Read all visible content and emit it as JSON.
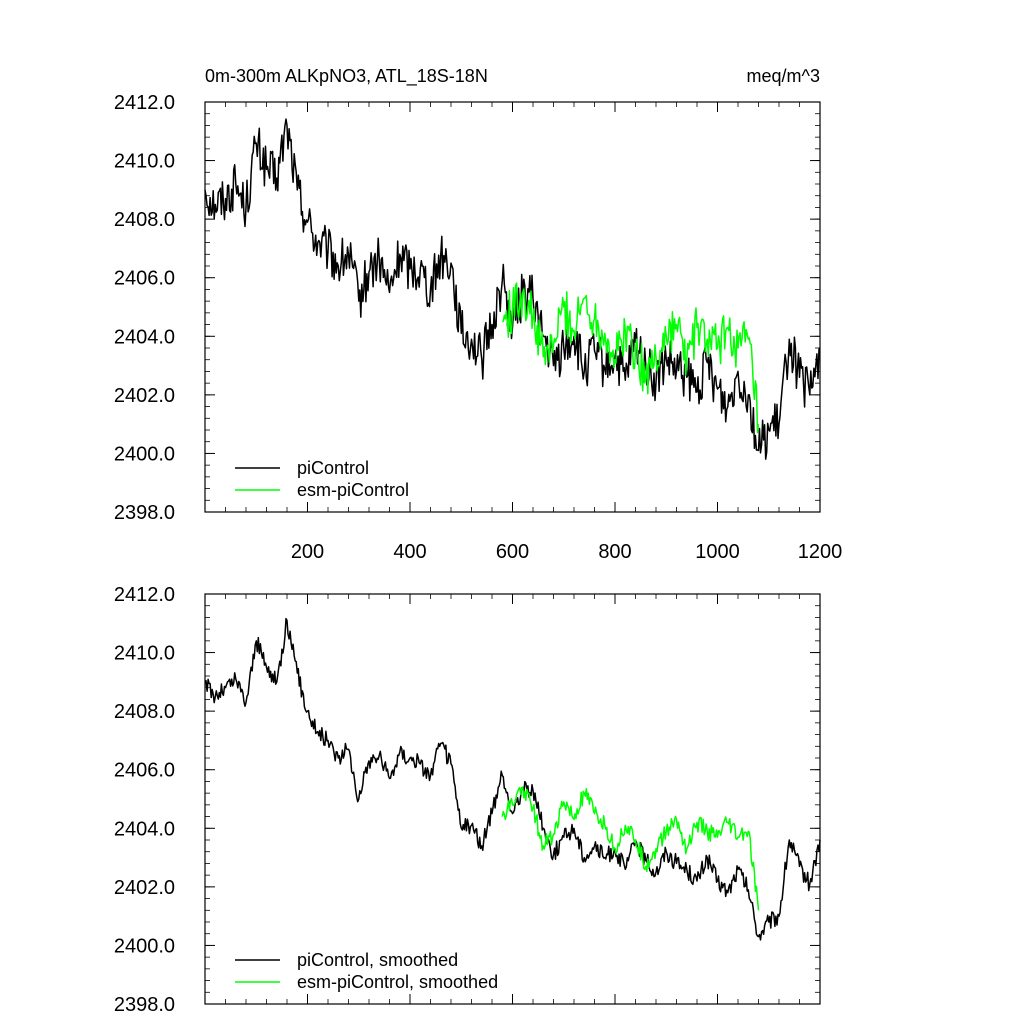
{
  "chart_data": [
    {
      "type": "line",
      "title_left": "0m-300m ALKpNO3, ATL_18S-18N",
      "title_right": "meq/m^3",
      "xlabel": "",
      "ylabel": "",
      "xlim": [
        0,
        1200
      ],
      "ylim": [
        2398,
        2412
      ],
      "x_ticks": [
        200,
        400,
        600,
        800,
        1000,
        1200
      ],
      "y_ticks": [
        2398.0,
        2400.0,
        2402.0,
        2404.0,
        2406.0,
        2408.0,
        2410.0,
        2412.0
      ],
      "x_tick_labels": [
        "200",
        "400",
        "600",
        "800",
        "1000",
        "1200"
      ],
      "y_tick_labels": [
        "2398.0",
        "2400.0",
        "2402.0",
        "2404.0",
        "2406.0",
        "2408.0",
        "2410.0",
        "2412.0"
      ],
      "legend_position": "bottom-left",
      "series": [
        {
          "name": "piControl",
          "color": "#000000",
          "x": [
            0,
            20,
            40,
            60,
            80,
            100,
            120,
            140,
            160,
            180,
            200,
            220,
            240,
            260,
            280,
            300,
            320,
            340,
            360,
            380,
            400,
            420,
            440,
            460,
            480,
            500,
            520,
            540,
            560,
            580,
            600,
            620,
            640,
            660,
            680,
            700,
            720,
            740,
            760,
            780,
            800,
            820,
            840,
            860,
            880,
            900,
            920,
            940,
            960,
            980,
            1000,
            1020,
            1040,
            1060,
            1080,
            1100,
            1120,
            1140,
            1160,
            1180,
            1200
          ],
          "y": [
            2409.0,
            2408.5,
            2408.7,
            2409.2,
            2408.4,
            2410.6,
            2409.7,
            2409.4,
            2411.2,
            2409.0,
            2407.9,
            2407.2,
            2406.9,
            2406.4,
            2406.8,
            2405.2,
            2406.2,
            2406.6,
            2405.5,
            2406.8,
            2406.3,
            2406.3,
            2405.6,
            2406.8,
            2406.5,
            2404.1,
            2403.9,
            2403.2,
            2404.4,
            2405.9,
            2404.3,
            2405.5,
            2405.3,
            2404.0,
            2403.0,
            2403.6,
            2404.0,
            2402.8,
            2403.5,
            2402.9,
            2403.3,
            2402.5,
            2403.8,
            2403.0,
            2402.4,
            2403.2,
            2402.8,
            2402.6,
            2402.1,
            2403.1,
            2402.2,
            2401.6,
            2402.8,
            2402.0,
            2400.1,
            2400.8,
            2401.0,
            2403.9,
            2402.6,
            2402.0,
            2403.6
          ]
        },
        {
          "name": "esm-piControl",
          "color": "#00ff00",
          "x": [
            580,
            600,
            620,
            640,
            660,
            680,
            700,
            720,
            740,
            760,
            780,
            800,
            820,
            840,
            860,
            880,
            900,
            920,
            940,
            960,
            980,
            1000,
            1020,
            1040,
            1060,
            1080
          ],
          "y": [
            2404.5,
            2404.9,
            2405.5,
            2404.6,
            2403.3,
            2403.7,
            2405.0,
            2404.2,
            2405.3,
            2404.6,
            2404.1,
            2403.2,
            2404.2,
            2403.5,
            2402.6,
            2403.3,
            2404.0,
            2404.4,
            2403.2,
            2404.3,
            2403.9,
            2403.6,
            2404.3,
            2403.6,
            2403.9,
            2401.0
          ]
        }
      ]
    },
    {
      "type": "line",
      "title_left": "",
      "title_right": "",
      "xlabel": "",
      "ylabel": "",
      "xlim": [
        0,
        1200
      ],
      "ylim": [
        2398,
        2412
      ],
      "x_ticks": [
        200,
        400,
        600,
        800,
        1000,
        1200
      ],
      "y_ticks": [
        2398.0,
        2400.0,
        2402.0,
        2404.0,
        2406.0,
        2408.0,
        2410.0,
        2412.0
      ],
      "x_tick_labels": [],
      "y_tick_labels": [
        "2398.0",
        "2400.0",
        "2402.0",
        "2404.0",
        "2406.0",
        "2408.0",
        "2410.0",
        "2412.0"
      ],
      "legend_position": "bottom-left",
      "series": [
        {
          "name": "piControl, smoothed",
          "color": "#000000",
          "x": [
            0,
            20,
            40,
            60,
            80,
            100,
            120,
            140,
            160,
            180,
            200,
            220,
            240,
            260,
            280,
            300,
            320,
            340,
            360,
            380,
            400,
            420,
            440,
            460,
            480,
            500,
            520,
            540,
            560,
            580,
            600,
            620,
            640,
            660,
            680,
            700,
            720,
            740,
            760,
            780,
            800,
            820,
            840,
            860,
            880,
            900,
            920,
            940,
            960,
            980,
            1000,
            1020,
            1040,
            1060,
            1080,
            1100,
            1120,
            1140,
            1160,
            1180,
            1200
          ],
          "y": [
            2409.0,
            2408.5,
            2408.8,
            2409.1,
            2408.3,
            2410.4,
            2409.5,
            2409.0,
            2411.1,
            2409.3,
            2408.0,
            2407.3,
            2407.0,
            2406.4,
            2406.7,
            2405.0,
            2406.3,
            2406.5,
            2405.7,
            2406.6,
            2406.4,
            2406.2,
            2405.8,
            2406.9,
            2406.2,
            2404.0,
            2404.1,
            2403.4,
            2404.5,
            2405.8,
            2404.5,
            2405.4,
            2405.3,
            2404.0,
            2403.1,
            2403.7,
            2404.0,
            2403.0,
            2403.4,
            2403.0,
            2403.3,
            2402.6,
            2403.6,
            2402.9,
            2402.5,
            2403.2,
            2402.8,
            2402.6,
            2402.2,
            2403.0,
            2402.2,
            2401.8,
            2402.6,
            2401.9,
            2400.3,
            2400.8,
            2401.0,
            2403.6,
            2402.7,
            2402.1,
            2403.6
          ]
        },
        {
          "name": "esm-piControl, smoothed",
          "color": "#00ff00",
          "x": [
            580,
            600,
            620,
            640,
            660,
            680,
            700,
            720,
            740,
            760,
            780,
            800,
            820,
            840,
            860,
            880,
            900,
            920,
            940,
            960,
            980,
            1000,
            1020,
            1040,
            1060,
            1080
          ],
          "y": [
            2404.4,
            2404.8,
            2405.4,
            2404.7,
            2403.4,
            2403.8,
            2404.9,
            2404.3,
            2405.2,
            2404.5,
            2404.1,
            2403.3,
            2404.1,
            2403.6,
            2402.7,
            2403.3,
            2403.9,
            2404.3,
            2403.3,
            2404.2,
            2403.9,
            2403.7,
            2404.2,
            2403.7,
            2403.9,
            2401.2
          ]
        }
      ]
    }
  ]
}
